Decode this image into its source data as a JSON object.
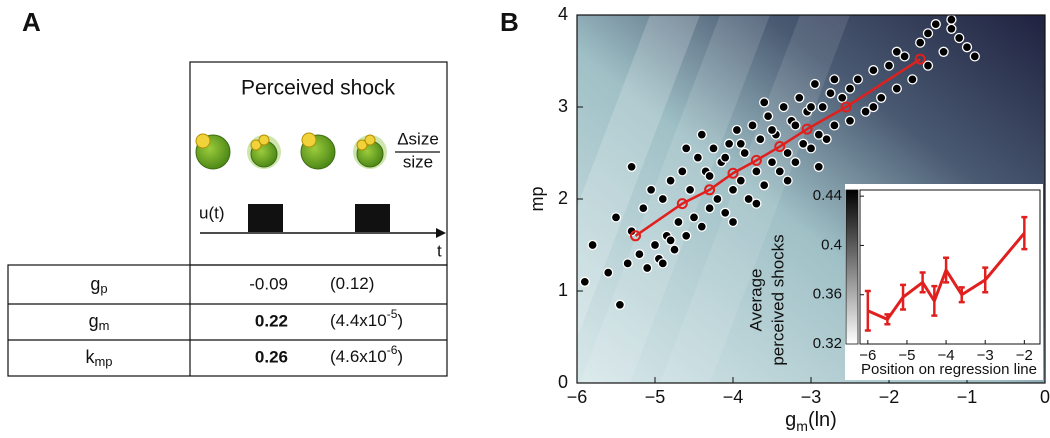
{
  "panel_a": {
    "label": "A",
    "header": "Perceived shock",
    "size_ratio": {
      "numerator": "Δsize",
      "denominator": "size"
    },
    "input_label": "u(t)",
    "time_label": "t",
    "rows": [
      {
        "symbol": "g",
        "subscript": "p",
        "estimate": "-0.09",
        "estimate_bold": false,
        "p_value": "(0.12)"
      },
      {
        "symbol": "g",
        "subscript": "m",
        "estimate": "0.22",
        "estimate_bold": true,
        "p_value": "(4.4x10",
        "p_exponent": "-5",
        "p_close": ")"
      },
      {
        "symbol": "k",
        "subscript": "mp",
        "estimate": "0.26",
        "estimate_bold": true,
        "p_value": "(4.6x10",
        "p_exponent": "-6",
        "p_close": ")"
      }
    ]
  },
  "chart_data": [
    {
      "type": "scatter",
      "panel_label": "B",
      "y_label": "mp",
      "x_label": "g",
      "x_label_sub": "m",
      "x_label_suffix": "(ln)",
      "xlim": [
        -6,
        0
      ],
      "ylim": [
        0,
        4
      ],
      "xticks": [
        {
          "value": -6,
          "label": "−6"
        },
        {
          "value": -5,
          "label": "−5"
        },
        {
          "value": -4,
          "label": "−4"
        },
        {
          "value": -3,
          "label": "−3"
        },
        {
          "value": -2,
          "label": "−2"
        },
        {
          "value": -1,
          "label": "−1"
        },
        0
      ],
      "yticks": [
        0,
        1,
        2,
        3,
        4
      ],
      "series": [
        {
          "style": "points",
          "color": "#000000",
          "x": [
            -5.9,
            -5.8,
            -5.6,
            -5.5,
            -5.45,
            -5.35,
            -5.3,
            -5.2,
            -5.15,
            -5.1,
            -5.05,
            -5.0,
            -4.95,
            -4.9,
            -4.85,
            -4.8,
            -4.75,
            -4.7,
            -4.65,
            -4.6,
            -4.55,
            -4.5,
            -4.45,
            -4.4,
            -4.35,
            -4.3,
            -4.25,
            -4.2,
            -4.15,
            -4.1,
            -4.05,
            -4.0,
            -3.95,
            -3.9,
            -3.85,
            -3.8,
            -3.75,
            -3.7,
            -3.65,
            -3.6,
            -3.55,
            -3.5,
            -3.45,
            -3.4,
            -3.35,
            -3.3,
            -3.25,
            -3.2,
            -3.15,
            -3.1,
            -3.05,
            -3.0,
            -2.95,
            -2.9,
            -2.85,
            -2.8,
            -2.75,
            -2.7,
            -2.6,
            -2.5,
            -2.4,
            -2.3,
            -2.2,
            -2.1,
            -2.0,
            -1.9,
            -1.8,
            -1.7,
            -1.6,
            -1.5,
            -1.4,
            -1.3,
            -1.2,
            -1.1,
            -1.0,
            -0.9,
            -5.3,
            -4.8,
            -4.6,
            -4.3,
            -4.0,
            -3.9,
            -3.7,
            -3.5,
            -3.3,
            -3.0,
            -2.9,
            -2.7,
            -2.5,
            -2.2,
            -1.9,
            -1.5,
            -1.2,
            -4.9,
            -4.4,
            -4.1,
            -3.6,
            -3.2
          ],
          "y": [
            1.1,
            1.5,
            1.2,
            1.8,
            0.85,
            1.3,
            2.35,
            1.4,
            1.9,
            1.25,
            2.1,
            1.5,
            1.35,
            2.0,
            1.6,
            2.2,
            1.45,
            1.75,
            2.3,
            1.6,
            2.1,
            1.8,
            2.45,
            1.7,
            2.3,
            1.9,
            2.55,
            2.0,
            2.4,
            1.85,
            2.6,
            2.1,
            2.75,
            2.2,
            2.5,
            2.0,
            2.8,
            2.3,
            2.65,
            2.15,
            2.9,
            2.4,
            2.7,
            2.3,
            3.0,
            2.5,
            2.85,
            2.4,
            3.1,
            2.6,
            2.95,
            2.55,
            3.25,
            2.7,
            3.0,
            2.65,
            3.15,
            2.8,
            3.1,
            2.85,
            3.3,
            2.95,
            3.4,
            3.1,
            3.45,
            3.2,
            3.55,
            3.3,
            3.7,
            3.45,
            3.9,
            3.6,
            3.95,
            3.75,
            3.65,
            3.55,
            1.65,
            1.55,
            2.55,
            2.25,
            1.75,
            2.6,
            1.95,
            2.75,
            2.2,
            3.0,
            2.35,
            3.3,
            3.2,
            3.0,
            3.6,
            3.8,
            3.85,
            1.3,
            2.7,
            2.45,
            3.05,
            2.8
          ]
        },
        {
          "style": "line-markers",
          "color": "#e0201e",
          "x": [
            -5.25,
            -4.65,
            -4.3,
            -4.0,
            -3.7,
            -3.4,
            -3.05,
            -2.55,
            -1.6
          ],
          "y": [
            1.6,
            1.95,
            2.1,
            2.28,
            2.42,
            2.57,
            2.76,
            3.0,
            3.52
          ]
        }
      ]
    },
    {
      "type": "errorbar-line",
      "x_label": "Position on regression line",
      "colorbar_label": [
        "Average",
        "perceived shocks"
      ],
      "xlim": [
        -6.2,
        -1.6
      ],
      "ylim": [
        0.32,
        0.445
      ],
      "xticks": [
        {
          "value": -6,
          "label": "−6"
        },
        {
          "value": -5,
          "label": "−5"
        },
        {
          "value": -4,
          "label": "−4"
        },
        {
          "value": -3,
          "label": "−3"
        },
        {
          "value": -2,
          "label": "−2"
        }
      ],
      "yticks": [
        0.32,
        0.36,
        0.4,
        0.44
      ],
      "color": "#e0201e",
      "x": [
        -6.0,
        -5.5,
        -5.1,
        -4.6,
        -4.3,
        -4.0,
        -3.6,
        -3.0,
        -2.0
      ],
      "values": [
        0.347,
        0.34,
        0.358,
        0.37,
        0.355,
        0.38,
        0.36,
        0.372,
        0.41
      ],
      "errors": [
        0.016,
        0.004,
        0.01,
        0.008,
        0.012,
        0.01,
        0.006,
        0.01,
        0.013
      ]
    }
  ]
}
